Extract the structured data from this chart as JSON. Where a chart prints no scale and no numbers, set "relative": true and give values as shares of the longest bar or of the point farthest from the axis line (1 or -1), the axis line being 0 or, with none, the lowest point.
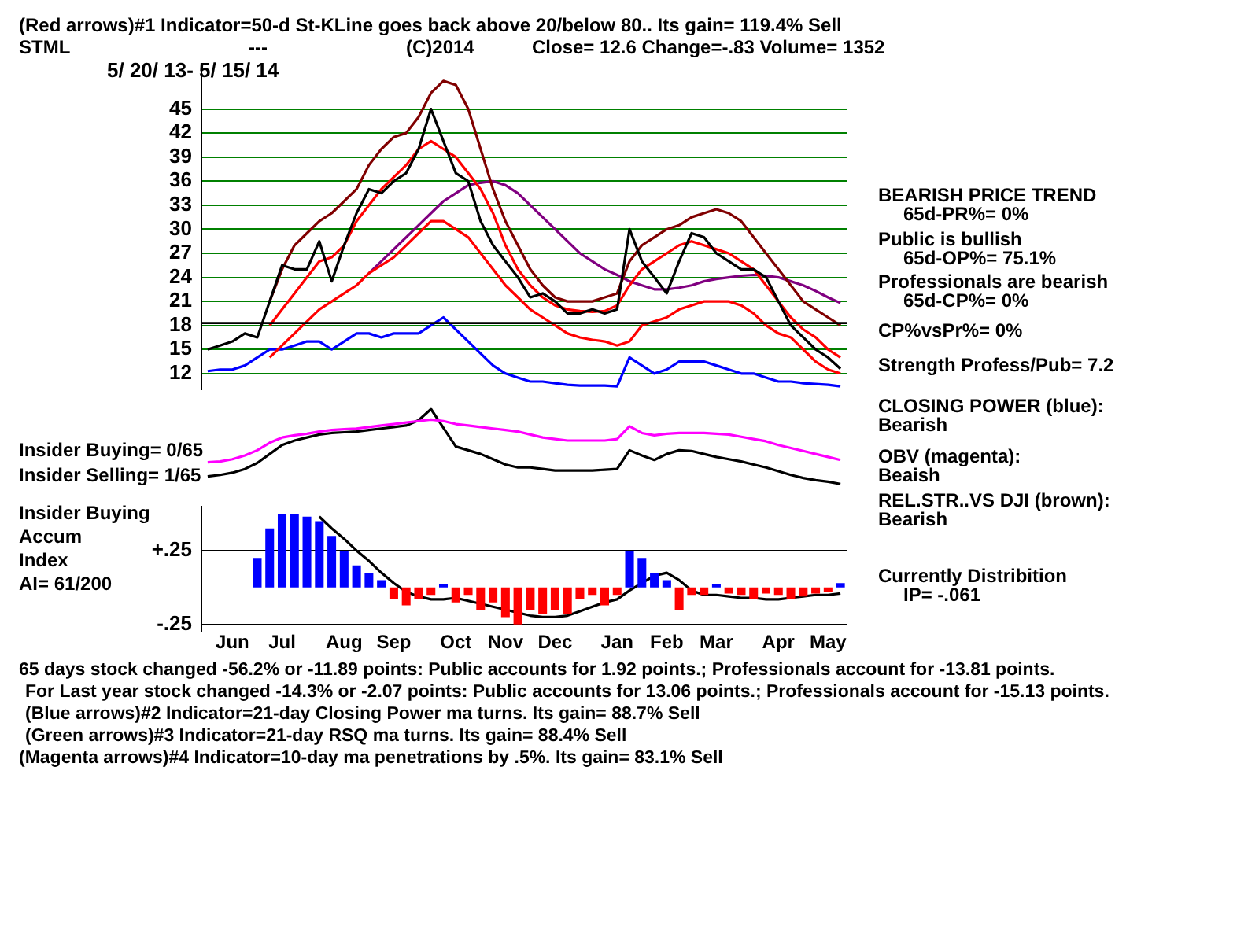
{
  "chart_data": [
    {
      "type": "line",
      "title": "(Red arrows)#1 Indicator=50-d St-KLine goes back above 20/below 80.. Its gain= 119.4% Sell",
      "subtitle": "5/ 20/ 13- 5/ 15/ 14",
      "categories": [
        null,
        null,
        null,
        null,
        null,
        null,
        null,
        null,
        null,
        null,
        null,
        null,
        null,
        null,
        null,
        null,
        null,
        null,
        null,
        null,
        null,
        null,
        null,
        null,
        null,
        null,
        null,
        null,
        null,
        null,
        null,
        null,
        null,
        null,
        null,
        null,
        null,
        null,
        null,
        null,
        null,
        null,
        null,
        null,
        null,
        null,
        null,
        null,
        null,
        null,
        null,
        null
      ],
      "series": [
        {
          "color": "#000000",
          "values": [
            15,
            15.5,
            16,
            17,
            16.5,
            21,
            25.5,
            25,
            25,
            28.5,
            23.5,
            28,
            32,
            35,
            34.5,
            36,
            37,
            40,
            45,
            41,
            37,
            36,
            31,
            28,
            26,
            24,
            21.5,
            22,
            21,
            19.5,
            19.5,
            20,
            19.5,
            20,
            30,
            26,
            24,
            22,
            26,
            29.5,
            29,
            27,
            26,
            25,
            25,
            24,
            21,
            18,
            16.5,
            15,
            14,
            12.6
          ]
        },
        {
          "color": "#800000",
          "values": [
            null,
            null,
            null,
            null,
            null,
            21,
            25,
            28,
            29.5,
            31,
            32,
            33.5,
            35,
            38,
            40,
            41.5,
            42,
            44,
            47,
            48.5,
            48,
            45,
            40,
            35,
            31,
            28,
            25,
            23,
            21.5,
            21,
            21,
            21,
            21.5,
            22,
            26,
            28,
            29,
            30,
            30.5,
            31.5,
            32,
            32.5,
            32,
            31,
            29,
            27,
            25,
            23,
            21,
            20,
            19,
            18
          ]
        },
        {
          "color": "#ff0000",
          "values": [
            null,
            null,
            null,
            null,
            null,
            18,
            20,
            22,
            24,
            26,
            26.5,
            28,
            31,
            33,
            35,
            36.5,
            38,
            40,
            41,
            40,
            39,
            37,
            35,
            32,
            28,
            25,
            23,
            21.5,
            20.5,
            20,
            19.8,
            19.7,
            19.8,
            20.5,
            23,
            25,
            26,
            27,
            28,
            28.5,
            28,
            27.5,
            27,
            26,
            25,
            23,
            21,
            19,
            17.5,
            16.5,
            15,
            14
          ]
        },
        {
          "color": "#ff0000",
          "values": [
            null,
            null,
            null,
            null,
            null,
            14,
            15.5,
            17,
            18.5,
            20,
            21,
            22,
            23,
            24.5,
            25.5,
            26.5,
            28,
            29.5,
            31,
            31,
            30,
            29,
            27,
            25,
            23,
            21.5,
            20,
            19,
            18,
            17,
            16.5,
            16.2,
            16,
            15.5,
            16,
            18,
            18.5,
            19,
            20,
            20.5,
            21,
            21,
            21,
            20.5,
            19.5,
            18,
            17,
            16.5,
            15,
            13.5,
            12.5,
            12
          ]
        },
        {
          "color": "#800080",
          "values": [
            null,
            null,
            null,
            null,
            null,
            null,
            null,
            null,
            null,
            null,
            null,
            null,
            null,
            24.5,
            26,
            27.5,
            29,
            30.5,
            32,
            33.5,
            34.5,
            35.5,
            35.8,
            36,
            35.5,
            34.5,
            33,
            31.5,
            30,
            28.5,
            27,
            26,
            25,
            24.3,
            23.5,
            23,
            22.5,
            22.5,
            22.7,
            23,
            23.5,
            23.8,
            24,
            24.2,
            24.3,
            24.2,
            24,
            23.5,
            23,
            22.3,
            21.5,
            20.8
          ]
        },
        {
          "color": "#0000ff",
          "values": [
            12.3,
            12.5,
            12.5,
            13,
            14,
            15,
            15,
            15.5,
            16,
            16,
            15,
            16,
            17,
            17,
            16.5,
            17,
            17,
            17,
            18,
            19,
            17.5,
            16,
            14.5,
            13,
            12,
            11.5,
            11,
            11,
            10.8,
            10.6,
            10.5,
            10.5,
            10.5,
            10.4,
            14,
            13,
            12,
            12.5,
            13.5,
            13.5,
            13.5,
            13,
            12.5,
            12,
            12,
            11.5,
            11,
            11,
            10.8,
            10.7,
            10.6,
            10.4
          ]
        }
      ],
      "ylim": [
        10,
        50
      ],
      "yticks": [
        12,
        15,
        18,
        21,
        24,
        27,
        30,
        33,
        36,
        39,
        42,
        45
      ],
      "grid": "y",
      "ref_lines": [
        {
          "axis": "y",
          "value": 18.3,
          "color": "#000000"
        }
      ],
      "annotations": [
        "STML",
        "---",
        "(C)2014",
        "Close=  12.6  Change=-.83 Volume= 1352",
        "BEARISH PRICE TREND",
        "65d-PR%= 0%",
        "Public is bullish",
        "65d-OP%= 75.1%",
        "Professionals are bearish",
        "65d-CP%= 0%",
        "CP%vsPr%=  0%",
        "Strength Profess/Pub= 7.2",
        "CLOSING POWER (blue):",
        "Bearish",
        "OBV (magenta):",
        "Beaish",
        "REL.STR..VS DJI (brown):",
        "Bearish",
        "Currently Distribition",
        "IP= -.061"
      ]
    },
    {
      "type": "line",
      "relative": true,
      "categories": [
        null,
        null,
        null,
        null,
        null,
        null,
        null,
        null,
        null,
        null,
        null,
        null,
        null,
        null,
        null,
        null,
        null,
        null,
        null,
        null,
        null,
        null,
        null,
        null,
        null,
        null,
        null,
        null,
        null,
        null,
        null,
        null,
        null,
        null,
        null,
        null,
        null,
        null,
        null,
        null,
        null,
        null,
        null,
        null,
        null,
        null,
        null,
        null,
        null,
        null,
        null,
        null
      ],
      "series": [
        {
          "color": "#ff00ff",
          "values": [
            0.29,
            0.3,
            0.33,
            0.38,
            0.45,
            0.55,
            0.62,
            0.65,
            0.67,
            0.7,
            0.72,
            0.73,
            0.74,
            0.76,
            0.78,
            0.8,
            0.82,
            0.84,
            0.86,
            0.84,
            0.8,
            0.78,
            0.76,
            0.74,
            0.72,
            0.7,
            0.66,
            0.62,
            0.6,
            0.58,
            0.58,
            0.58,
            0.58,
            0.6,
            0.77,
            0.68,
            0.65,
            0.67,
            0.68,
            0.68,
            0.68,
            0.67,
            0.66,
            0.63,
            0.6,
            0.57,
            0.52,
            0.48,
            0.44,
            0.4,
            0.36,
            0.32
          ]
        },
        {
          "color": "#000000",
          "values": [
            0.1,
            0.12,
            0.15,
            0.2,
            0.28,
            0.4,
            0.52,
            0.58,
            0.62,
            0.66,
            0.68,
            0.69,
            0.7,
            0.72,
            0.74,
            0.76,
            0.78,
            0.85,
            1,
            0.75,
            0.5,
            0.45,
            0.4,
            0.33,
            0.26,
            0.22,
            0.22,
            0.2,
            0.18,
            0.18,
            0.18,
            0.18,
            0.19,
            0.2,
            0.45,
            0.38,
            0.32,
            0.4,
            0.45,
            0.44,
            0.4,
            0.36,
            0.33,
            0.3,
            0.26,
            0.22,
            0.17,
            0.12,
            0.08,
            0.05,
            0.03,
            0
          ]
        }
      ],
      "annotations": [
        "Insider Buying= 0/65",
        "Insider Selling= 1/65"
      ]
    },
    {
      "type": "bar",
      "categories": [
        null,
        null,
        "Jun",
        null,
        null,
        null,
        "Jul",
        null,
        null,
        null,
        null,
        "Aug",
        null,
        null,
        null,
        "Sep",
        null,
        null,
        null,
        null,
        "Oct",
        null,
        null,
        null,
        "Nov",
        null,
        null,
        null,
        "Dec",
        null,
        null,
        null,
        null,
        "Jan",
        null,
        null,
        null,
        "Feb",
        null,
        null,
        null,
        "Mar",
        null,
        null,
        null,
        null,
        "Apr",
        null,
        null,
        null,
        "May",
        null
      ],
      "series": [
        {
          "colors": [
            null,
            null,
            null,
            null,
            "#0000ff",
            "#0000ff",
            "#0000ff",
            "#0000ff",
            "#0000ff",
            "#0000ff",
            "#0000ff",
            "#0000ff",
            "#0000ff",
            "#0000ff",
            "#0000ff",
            "#ff0000",
            "#ff0000",
            "#ff0000",
            "#ff0000",
            "#0000ff",
            "#ff0000",
            "#ff0000",
            "#ff0000",
            "#ff0000",
            "#ff0000",
            "#ff0000",
            "#ff0000",
            "#ff0000",
            "#ff0000",
            "#ff0000",
            "#ff0000",
            "#ff0000",
            "#ff0000",
            "#ff0000",
            "#0000ff",
            "#0000ff",
            "#0000ff",
            "#0000ff",
            "#ff0000",
            "#ff0000",
            "#ff0000",
            "#0000ff",
            "#ff0000",
            "#ff0000",
            "#ff0000",
            "#ff0000",
            "#ff0000",
            "#ff0000",
            "#ff0000",
            "#ff0000",
            "#ff0000",
            "#0000ff"
          ],
          "values": [
            null,
            null,
            null,
            null,
            0.2,
            0.4,
            0.5,
            0.5,
            0.48,
            0.45,
            0.35,
            0.25,
            0.15,
            0.1,
            0.05,
            -0.08,
            -0.12,
            -0.08,
            -0.05,
            0.02,
            -0.1,
            -0.05,
            -0.15,
            -0.1,
            -0.2,
            -0.25,
            -0.15,
            -0.18,
            -0.15,
            -0.18,
            -0.08,
            -0.05,
            -0.12,
            -0.05,
            0.25,
            0.2,
            0.1,
            0.05,
            -0.15,
            -0.05,
            -0.05,
            0.02,
            -0.04,
            -0.05,
            -0.08,
            -0.04,
            -0.05,
            -0.08,
            -0.06,
            -0.04,
            -0.03,
            0.03
          ]
        },
        {
          "type": "line",
          "color": "#000000",
          "values": [
            null,
            null,
            null,
            null,
            null,
            null,
            null,
            null,
            null,
            0.48,
            0.4,
            0.33,
            0.25,
            0.18,
            0.1,
            0.03,
            -0.03,
            -0.06,
            -0.08,
            -0.08,
            -0.07,
            -0.09,
            -0.11,
            -0.13,
            -0.15,
            -0.17,
            -0.19,
            -0.2,
            -0.2,
            -0.19,
            -0.16,
            -0.13,
            -0.1,
            -0.08,
            -0.02,
            0.03,
            0.08,
            0.1,
            0.05,
            -0.02,
            -0.05,
            -0.05,
            -0.06,
            -0.07,
            -0.07,
            -0.08,
            -0.08,
            -0.07,
            -0.06,
            -0.05,
            -0.05,
            -0.04
          ]
        }
      ],
      "ylim": [
        -0.3,
        0.55
      ],
      "yticks": [
        {
          "value": -0.25,
          "label": "-.25"
        },
        {
          "value": 0.25,
          "label": "+.25"
        }
      ],
      "grid": "y",
      "annotations": [
        "Insider Buying",
        "Accum",
        "Index",
        "AI= 61/200",
        "65 days stock changed -56.2% or -11.89 points:  Public accounts for  1.92 points.;  Professionals account for -13.81 points.",
        "For Last year stock changed -14.3% or -2.07 points:  Public accounts for  13.06 points.;  Professionals account for -15.13 points.",
        "(Blue arrows)#2 Indicator=21-day Closing Power ma turns. Its gain= 88.7% Sell",
        "(Green arrows)#3 Indicator=21-day RSQ ma turns. Its gain= 88.4% Sell",
        "(Magenta arrows)#4 Indicator=10-day ma penetrations by .5%. Its gain= 83.1% Sell"
      ]
    }
  ]
}
